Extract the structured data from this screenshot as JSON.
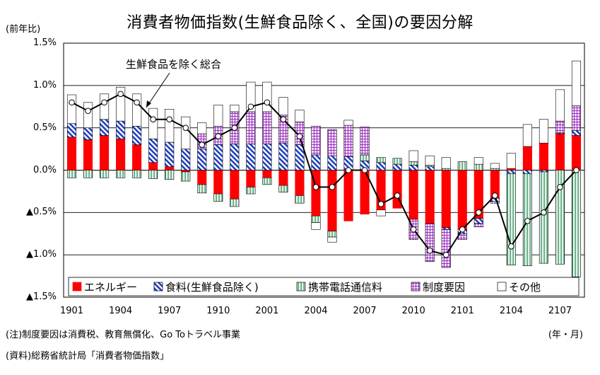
{
  "chart_data": {
    "type": "bar",
    "stacked": true,
    "title": "消費者物価指数(生鮮食品除く、全国)の要因分解",
    "unit_label": "(前年比)",
    "ylim": [
      -1.5,
      1.5
    ],
    "y_ticks": [
      "1.5%",
      "1.0%",
      "0.5%",
      "0.0%",
      "▲0.5%",
      "▲1.0%",
      "▲1.5%"
    ],
    "y_tick_values": [
      1.5,
      1.0,
      0.5,
      0.0,
      -0.5,
      -1.0,
      -1.5
    ],
    "x_ticks": [
      "1901",
      "1904",
      "1907",
      "1910",
      "2001",
      "2004",
      "2007",
      "2010",
      "2101",
      "2104",
      "2107"
    ],
    "x_period_label": "(年・月)",
    "grid": "horizontal",
    "legend_position": "bottom-inside",
    "line_annotation": "生鮮食品を除く総合",
    "months": [
      "1901",
      "1902",
      "1903",
      "1904",
      "1905",
      "1906",
      "1907",
      "1908",
      "1909",
      "1910",
      "1911",
      "1912",
      "2001",
      "2002",
      "2003",
      "2004",
      "2005",
      "2006",
      "2007",
      "2008",
      "2009",
      "2010",
      "2011",
      "2012",
      "2101",
      "2102",
      "2103",
      "2104",
      "2105",
      "2106",
      "2107",
      "2108"
    ],
    "series": [
      {
        "name": "エネルギー",
        "color": "#ff0000",
        "pattern": "solid",
        "values": [
          0.39,
          0.36,
          0.41,
          0.37,
          0.3,
          0.09,
          0.04,
          -0.02,
          -0.17,
          -0.28,
          -0.34,
          -0.2,
          -0.09,
          -0.18,
          -0.3,
          -0.54,
          -0.72,
          -0.6,
          -0.52,
          -0.47,
          -0.45,
          -0.58,
          -0.63,
          -0.68,
          -0.7,
          -0.57,
          -0.33,
          0.02,
          0.28,
          0.32,
          0.43,
          0.41
        ]
      },
      {
        "name": "食料(生鮮食品除く)",
        "color": "#1f3fbf",
        "pattern": "diagonal",
        "values": [
          0.16,
          0.14,
          0.19,
          0.21,
          0.22,
          0.28,
          0.29,
          0.25,
          0.25,
          0.3,
          0.31,
          0.31,
          0.31,
          0.32,
          0.3,
          0.18,
          0.17,
          0.16,
          0.11,
          0.09,
          0.07,
          0.06,
          0.04,
          -0.02,
          -0.05,
          -0.06,
          -0.04,
          -0.04,
          -0.04,
          -0.02,
          0.01,
          0.06
        ]
      },
      {
        "name": "携帯電話通信料",
        "color": "#2e8b57",
        "pattern": "vertical",
        "values": [
          -0.09,
          -0.09,
          -0.09,
          -0.09,
          -0.09,
          -0.1,
          -0.11,
          -0.11,
          -0.1,
          -0.09,
          -0.09,
          -0.08,
          -0.08,
          -0.08,
          -0.09,
          -0.08,
          -0.07,
          0.0,
          0.07,
          0.06,
          0.07,
          0.04,
          0.02,
          0.02,
          0.1,
          0.07,
          0.02,
          -1.08,
          -1.09,
          -1.08,
          -1.11,
          -1.26
        ]
      },
      {
        "name": "制度要因",
        "color": "#9b30c0",
        "pattern": "grid",
        "values": [
          0,
          0,
          0,
          0,
          0,
          0,
          0,
          0,
          0.18,
          0.22,
          0.38,
          0.38,
          0.38,
          0.33,
          0.27,
          0.34,
          0.31,
          0.37,
          0.33,
          0,
          0,
          -0.24,
          -0.45,
          -0.45,
          -0.07,
          -0.04,
          -0.02,
          0,
          0,
          0,
          0.14,
          0.29
        ]
      },
      {
        "name": "その他",
        "color": "#ffffff",
        "pattern": "none",
        "values": [
          0.34,
          0.3,
          0.3,
          0.4,
          0.38,
          0.36,
          0.39,
          0.38,
          0.13,
          0.25,
          0.08,
          0.35,
          0.35,
          0.21,
          0.14,
          -0.08,
          -0.06,
          0.06,
          0.0,
          -0.07,
          0.0,
          0.13,
          0.11,
          0.13,
          0.0,
          0.08,
          0.06,
          0.18,
          0.26,
          0.28,
          0.37,
          0.53
        ]
      }
    ],
    "total": {
      "name": "生鮮食品を除く総合",
      "values": [
        0.8,
        0.7,
        0.8,
        0.9,
        0.8,
        0.6,
        0.6,
        0.5,
        0.3,
        0.4,
        0.5,
        0.75,
        0.8,
        0.6,
        0.4,
        -0.2,
        -0.2,
        0.0,
        0.0,
        -0.4,
        -0.3,
        -0.7,
        -0.95,
        -1.0,
        -0.7,
        -0.5,
        -0.3,
        -0.9,
        -0.6,
        -0.5,
        -0.2,
        0.0
      ]
    }
  },
  "notes": {
    "note1": "(注)制度要因は消費税、教育無償化、Go Toトラベル事業",
    "note2": "(資料)総務省統計局「消費者物価指数」"
  }
}
